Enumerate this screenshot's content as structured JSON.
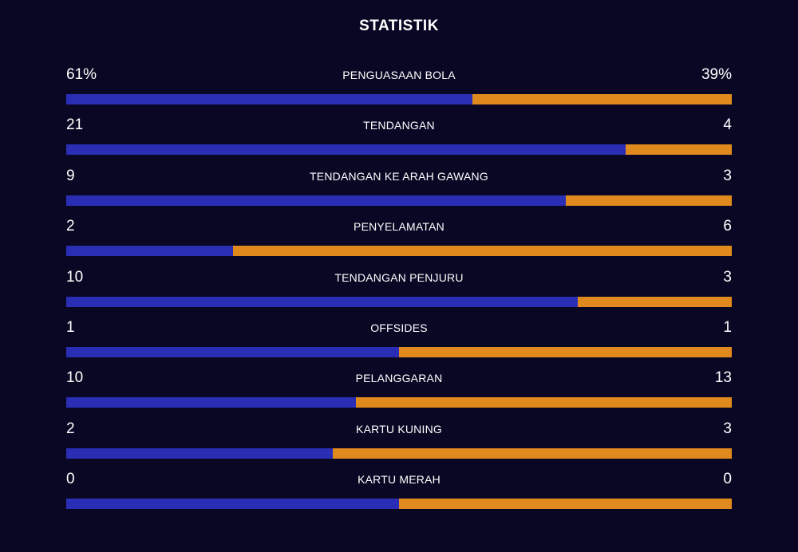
{
  "header": {
    "title": "STATISTIK"
  },
  "colors": {
    "background": "#090723",
    "home_bar": "#2a2eb5",
    "away_bar": "#e08a1d",
    "text": "#ffffff"
  },
  "stats": [
    {
      "label": "PENGUASAAN BOLA",
      "home": "61%",
      "away": "39%",
      "home_share": 0.61
    },
    {
      "label": "TENDANGAN",
      "home": "21",
      "away": "4",
      "home_share": 0.84
    },
    {
      "label": "TENDANGAN KE ARAH GAWANG",
      "home": "9",
      "away": "3",
      "home_share": 0.75
    },
    {
      "label": "PENYELAMATAN",
      "home": "2",
      "away": "6",
      "home_share": 0.25
    },
    {
      "label": "TENDANGAN PENJURU",
      "home": "10",
      "away": "3",
      "home_share": 0.769
    },
    {
      "label": "OFFSIDES",
      "home": "1",
      "away": "1",
      "home_share": 0.5
    },
    {
      "label": "PELANGGARAN",
      "home": "10",
      "away": "13",
      "home_share": 0.435
    },
    {
      "label": "KARTU KUNING",
      "home": "2",
      "away": "3",
      "home_share": 0.4
    },
    {
      "label": "KARTU MERAH",
      "home": "0",
      "away": "0",
      "home_share": 0.5
    }
  ]
}
